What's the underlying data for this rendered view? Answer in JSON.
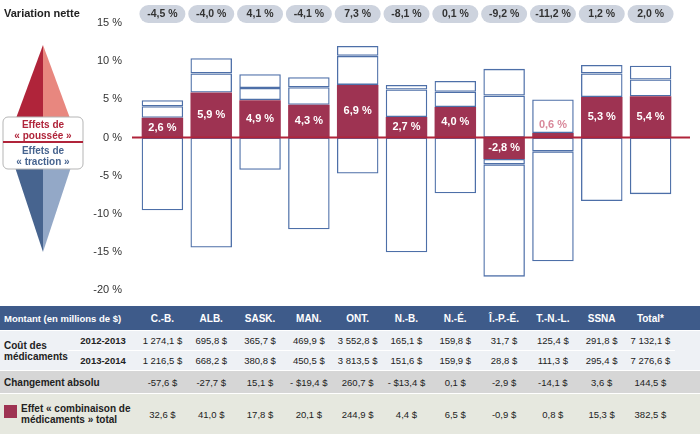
{
  "chart_data": {
    "type": "bar",
    "stacked": true,
    "grid": false,
    "data_labels": true,
    "tick_labels": "y",
    "categories": [
      "C.-B.",
      "ALB.",
      "SASK.",
      "MAN.",
      "ONT.",
      "N.-B.",
      "N.-É.",
      "Î.-P.-É.",
      "T.-N.-L.",
      "SSNA",
      "Total*"
    ],
    "ylim": [
      -20,
      15
    ],
    "yticks": [
      {
        "value": -20,
        "label": "-20 %"
      },
      {
        "value": -15,
        "label": "-15 %"
      },
      {
        "value": -10,
        "label": "-10 %"
      },
      {
        "value": -5,
        "label": "-5 %"
      },
      {
        "value": 0,
        "label": "0 %"
      },
      {
        "value": 5,
        "label": "5 %"
      },
      {
        "value": 10,
        "label": "10 %"
      },
      {
        "value": 15,
        "label": "15 %"
      }
    ],
    "baseline": 0,
    "net_change": {
      "label": "Variation nette",
      "labels": [
        "-4,5 %",
        "-4,0 %",
        "4,1 %",
        "-4,1 %",
        "7,3 %",
        "-8,1 %",
        "0,1 %",
        "-9,2 %",
        "-11,2 %",
        "1,2 %",
        "2,0 %"
      ]
    },
    "series": [
      {
        "color": "#9e3352",
        "values": [
          2.6,
          5.9,
          4.9,
          4.3,
          6.9,
          2.7,
          4.0,
          -2.8,
          0.6,
          5.3,
          5.4
        ],
        "value_labels": [
          "2,6 %",
          "5,9 %",
          "4,9 %",
          "4,3 %",
          "6,9 %",
          "2,7 %",
          "4,0 %",
          "-2,8 %",
          "0,6 %",
          "5,3 %",
          "5,4 %"
        ]
      },
      {
        "name": "Effets de « poussée »",
        "color": "#4d6fa8",
        "values": [
          1.5,
          2.5,
          1.6,
          2.3,
          3.8,
          3.6,
          2.0,
          5.5,
          4.4,
          3.1,
          2.2
        ]
      },
      {
        "name": "Effets de « poussée »",
        "color": "#4d6fa8",
        "values": [
          0.8,
          2.0,
          1.8,
          1.3,
          1.3,
          0.6,
          1.4,
          3.5,
          null,
          1.1,
          1.8
        ]
      },
      {
        "name": "Effets de « traction »",
        "color": "#4d6fa8",
        "values": [
          -9.5,
          -14.4,
          -4.2,
          -12.0,
          -4.7,
          -15.0,
          -7.3,
          -0.7,
          -1.8,
          -8.3,
          -7.4
        ]
      },
      {
        "name": "Effets de « traction »",
        "color": "#4d6fa8",
        "values": [
          null,
          null,
          null,
          null,
          null,
          null,
          null,
          -14.7,
          -14.4,
          null,
          null
        ]
      }
    ]
  },
  "table": {
    "header": "Montant (en millions de $)",
    "rows": [
      {
        "label": "Coût des médicaments",
        "periods": [
          {
            "label": "2012-2013",
            "cells": [
              "1 274,1 $",
              "695,8 $",
              "365,7 $",
              "469,9 $",
              "3 552,8 $",
              "165,1 $",
              "159,8 $",
              "31,7 $",
              "125,4 $",
              "291,8 $",
              "7 132,1 $"
            ]
          },
          {
            "label": "2013-2014",
            "cells": [
              "1 216,5 $",
              "668,2 $",
              "380,8 $",
              "450,5 $",
              "3 813,5 $",
              "151,6 $",
              "159,9 $",
              "28,8 $",
              "111,3 $",
              "295,4 $",
              "7 276,6 $"
            ]
          }
        ]
      },
      {
        "label": "Changement absolu",
        "cells": [
          "-57,6 $",
          "-27,7 $",
          "15,1 $",
          "- $19,4 $",
          "260,7 $",
          "- $13,4 $",
          "0,1 $",
          "-2,9 $",
          "-14,1 $",
          "3,6 $",
          "144,5 $"
        ]
      },
      {
        "label": "Effet « combinaison de médicaments » total",
        "color": "#9e3352",
        "cells": [
          "32,6 $",
          "41,0 $",
          "17,8 $",
          "20,1 $",
          "244,9 $",
          "4,4 $",
          "6,5 $",
          "-0,9 $",
          "0,8 $",
          "15,3 $",
          "382,5 $"
        ]
      }
    ]
  }
}
